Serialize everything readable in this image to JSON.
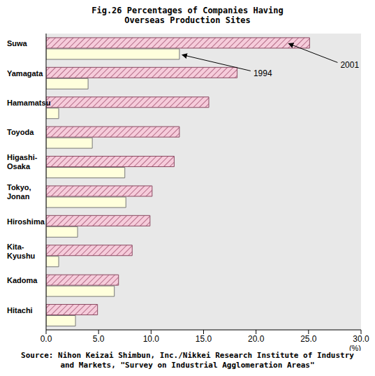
{
  "chart_data": {
    "type": "bar",
    "title": "Fig.26 Percentages of Companies Having Overseas Production Sites",
    "orientation": "horizontal",
    "grid": false,
    "categories": [
      "Suwa",
      "Yamagata",
      "Hamamatsu",
      "Toyoda",
      "Higashi-Osaka",
      "Tokyo, Jonan",
      "Hiroshima",
      "Kita-Kyushu",
      "Kadoma",
      "Hitachi"
    ],
    "series": [
      {
        "name": "2001",
        "color": "#f6ccdb",
        "values": [
          25.1,
          18.2,
          15.5,
          12.7,
          12.2,
          10.1,
          9.9,
          8.2,
          6.9,
          4.9
        ]
      },
      {
        "name": "1994",
        "color": "#ffffdc",
        "values": [
          12.7,
          4.0,
          1.2,
          4.4,
          7.5,
          7.6,
          3.0,
          1.2,
          6.5,
          2.8
        ]
      }
    ],
    "xlim": [
      0,
      30
    ],
    "xticks": [
      {
        "value": 0,
        "label": "0.0"
      },
      {
        "value": 5,
        "label": "5.0"
      },
      {
        "value": 10,
        "label": "10.0"
      },
      {
        "value": 15,
        "label": "15.0"
      },
      {
        "value": 20,
        "label": "20.0"
      },
      {
        "value": 25,
        "label": "25.0"
      },
      {
        "value": 30,
        "label": "30.0"
      }
    ],
    "xlabel": "(%)",
    "source": "Source: Nihon Keizai Shimbun, Inc./Nikkei Research Institute of Industry and Markets, \"Survey on Industrial Agglomeration Areas\""
  }
}
